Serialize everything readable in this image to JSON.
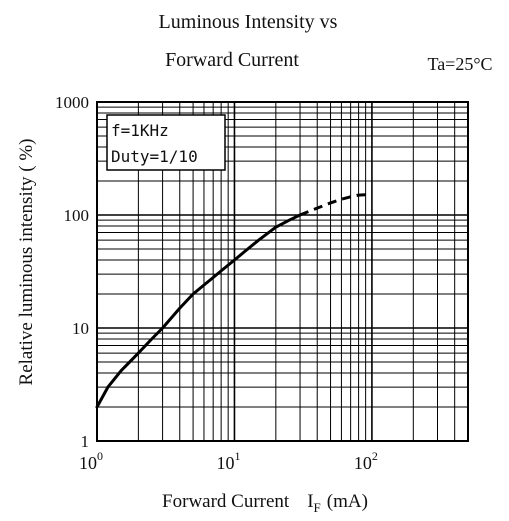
{
  "chart_data": {
    "type": "line",
    "title_line1": "Luminous Intensity vs",
    "title_line2": "Forward Current",
    "condition": "Ta=25°C",
    "ylabel": "Relative luminous intensity ( %)",
    "xlabel": "Forward Current",
    "xlabel_symbol": "I",
    "xlabel_subscript": "F",
    "xlabel_unit": "(mA)",
    "x_scale": "log",
    "y_scale": "log",
    "xlim": [
      1,
      500
    ],
    "ylim": [
      1,
      1000
    ],
    "x_ticks": [
      {
        "base": "10",
        "exp": "0",
        "value": 1
      },
      {
        "base": "10",
        "exp": "1",
        "value": 10
      },
      {
        "base": "10",
        "exp": "2",
        "value": 100
      }
    ],
    "y_ticks": [
      {
        "label": "1",
        "value": 1
      },
      {
        "label": "10",
        "value": 10
      },
      {
        "label": "100",
        "value": 100
      },
      {
        "label": "1000",
        "value": 1000
      }
    ],
    "grid": true,
    "annotation_lines": [
      "f=1KHz",
      "Duty=1/10"
    ],
    "series": [
      {
        "style": "solid",
        "x": [
          1,
          1.2,
          1.5,
          2,
          2.5,
          3,
          4,
          5,
          6,
          7,
          8,
          10,
          12,
          15,
          20,
          25,
          30
        ],
        "y": [
          2,
          3,
          4.2,
          6,
          8,
          10,
          15,
          20,
          24,
          28,
          32,
          40,
          48,
          60,
          78,
          90,
          100
        ]
      },
      {
        "style": "dashed",
        "x": [
          30,
          40,
          50,
          60,
          70,
          80,
          100
        ],
        "y": [
          100,
          115,
          128,
          138,
          145,
          150,
          152
        ]
      }
    ]
  }
}
